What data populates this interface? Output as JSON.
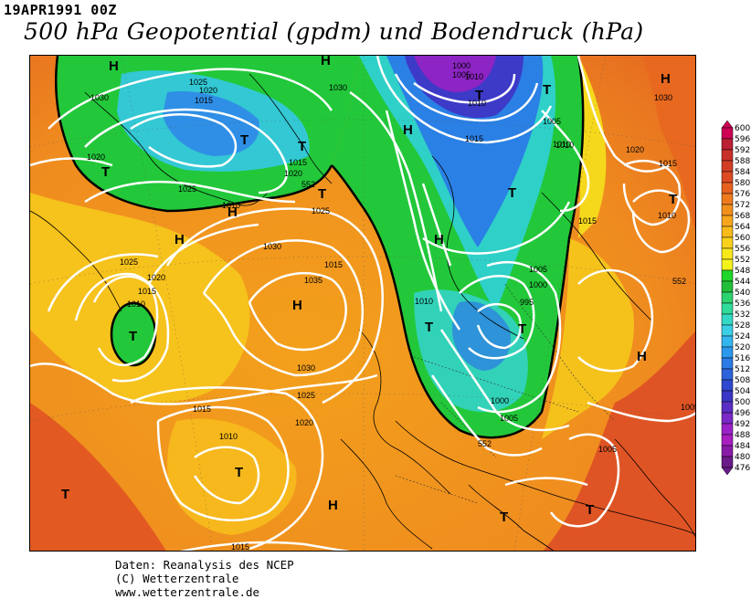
{
  "header": {
    "date": "19APR1991 00Z",
    "title": "500 hPa Geopotential (gpdm) und Bodendruck (hPa)"
  },
  "credits": {
    "line1": "Daten: Reanalysis des NCEP",
    "line2": "(C) Wetterzentrale",
    "line3": "www.wetterzentrale.de"
  },
  "colorbar": {
    "labels": [
      "600",
      "596",
      "592",
      "588",
      "584",
      "580",
      "576",
      "572",
      "568",
      "564",
      "560",
      "556",
      "552",
      "548",
      "544",
      "540",
      "536",
      "532",
      "528",
      "524",
      "520",
      "516",
      "512",
      "508",
      "504",
      "500",
      "496",
      "492",
      "488",
      "484",
      "480",
      "476"
    ],
    "colors": [
      "#cc0055",
      "#bb1f33",
      "#c9302a",
      "#d33d25",
      "#de4a22",
      "#e8601e",
      "#ef7a1c",
      "#f2901c",
      "#f6a51c",
      "#f8bb1c",
      "#fad21c",
      "#f8e81a",
      "#f5f31c",
      "#1fd62a",
      "#22c03a",
      "#2cd26e",
      "#2fdc9a",
      "#33d9c4",
      "#3acfe6",
      "#33b6f0",
      "#2b98ee",
      "#2a7be6",
      "#2c62da",
      "#2f48d0",
      "#3a36c6",
      "#5a2ec4",
      "#7a28c6",
      "#9a22c8",
      "#a81ec0",
      "#8a1aa8",
      "#6a1a88"
    ]
  },
  "map": {
    "pressure_systems": [
      {
        "label": "H"
      },
      {
        "label": "H"
      },
      {
        "label": "H"
      },
      {
        "label": "T"
      },
      {
        "label": "T"
      },
      {
        "label": "T"
      },
      {
        "label": "T"
      },
      {
        "label": "H"
      },
      {
        "label": "H"
      },
      {
        "label": "T"
      },
      {
        "label": "T"
      },
      {
        "label": "T"
      },
      {
        "label": "T"
      },
      {
        "label": "H"
      },
      {
        "label": "H"
      },
      {
        "label": "T"
      },
      {
        "label": "T"
      },
      {
        "label": "H"
      },
      {
        "label": "T"
      },
      {
        "label": "H"
      },
      {
        "label": "T"
      },
      {
        "label": "T"
      }
    ],
    "isobar_labels": [
      "1030",
      "1025",
      "1020",
      "1015",
      "1030",
      "1020",
      "1020",
      "1015",
      "1025",
      "1010",
      "1025",
      "1030",
      "1035",
      "1025",
      "1020",
      "1015",
      "1010",
      "1015",
      "1030",
      "1025",
      "1020",
      "1015",
      "1010",
      "1015",
      "1000",
      "1005",
      "1010",
      "1010",
      "1005",
      "1010",
      "1015",
      "1005",
      "1000",
      "995",
      "1000",
      "1005",
      "1030",
      "1020",
      "1015",
      "1010",
      "1015",
      "1005",
      "1010",
      "1010",
      "1005",
      "552",
      "552",
      "552"
    ]
  }
}
